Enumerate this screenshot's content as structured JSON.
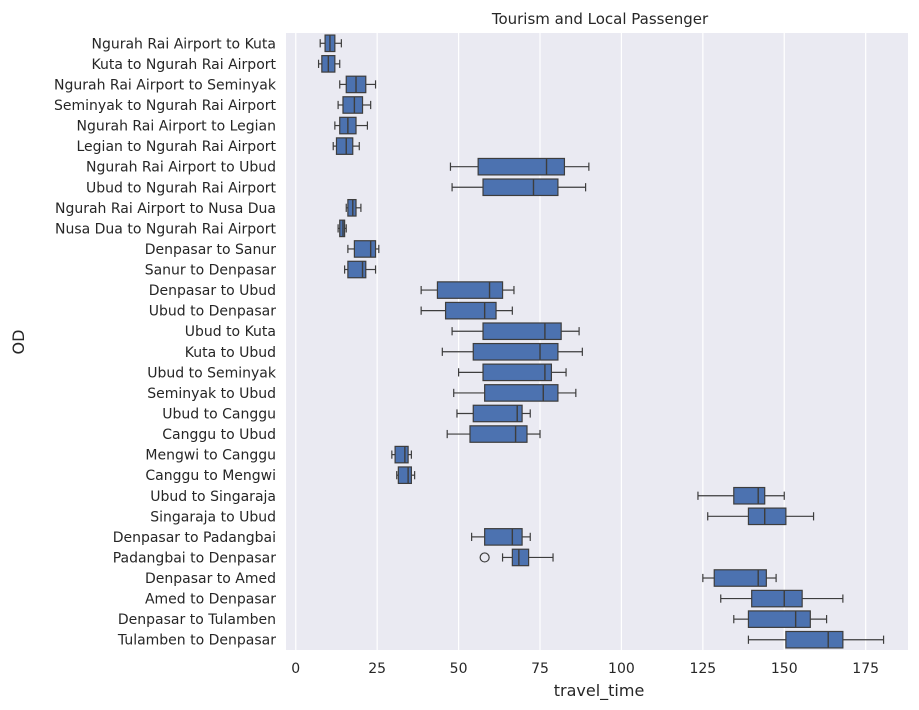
{
  "chart_data": {
    "type": "boxplot",
    "orientation": "horizontal",
    "title": "Tourism and Local Passenger",
    "xlabel": "travel_time",
    "ylabel": "OD",
    "xlim": [
      -3,
      188
    ],
    "xticks": [
      0,
      25,
      50,
      75,
      100,
      125,
      150,
      175
    ],
    "grid": true,
    "colors": {
      "box_fill": "#4c72b0",
      "line": "#3d3d3d",
      "background": "#eaeaf2",
      "grid": "#ffffff"
    },
    "categories": [
      "Ngurah Rai Airport to Kuta",
      "Kuta to Ngurah Rai Airport",
      "Ngurah Rai Airport to Seminyak",
      "Seminyak to Ngurah Rai Airport",
      "Ngurah Rai Airport to Legian",
      "Legian to Ngurah Rai Airport",
      "Ngurah Rai Airport to Ubud",
      "Ubud to Ngurah Rai Airport",
      "Ngurah Rai Airport to Nusa Dua",
      "Nusa Dua to Ngurah Rai Airport",
      "Denpasar to Sanur",
      "Sanur to Denpasar",
      "Denpasar to Ubud",
      "Ubud to Denpasar",
      "Ubud to Kuta",
      "Kuta to Ubud",
      "Ubud to Seminyak",
      "Seminyak to Ubud",
      "Ubud to Canggu",
      "Canggu to Ubud",
      "Mengwi to Canggu",
      "Canggu to Mengwi",
      "Ubud to Singaraja",
      "Singaraja to Ubud",
      "Denpasar to Padangbai",
      "Padangbai to Denpasar",
      "Denpasar to Amed",
      "Amed to Denpasar",
      "Denpasar to Tulamben",
      "Tulamben to Denpasar"
    ],
    "boxes": [
      {
        "whislo": 7.5,
        "q1": 9,
        "med": 10.5,
        "q3": 12,
        "whishi": 14,
        "fliers": []
      },
      {
        "whislo": 7,
        "q1": 8,
        "med": 10,
        "q3": 12,
        "whishi": 13.5,
        "fliers": []
      },
      {
        "whislo": 13.5,
        "q1": 15.5,
        "med": 18.5,
        "q3": 21.5,
        "whishi": 24.5,
        "fliers": []
      },
      {
        "whislo": 13,
        "q1": 14.5,
        "med": 18,
        "q3": 20.5,
        "whishi": 23,
        "fliers": []
      },
      {
        "whislo": 12,
        "q1": 13.5,
        "med": 16,
        "q3": 18.5,
        "whishi": 22,
        "fliers": []
      },
      {
        "whislo": 11.5,
        "q1": 12.5,
        "med": 15.5,
        "q3": 17.5,
        "whishi": 19.5,
        "fliers": []
      },
      {
        "whislo": 47.5,
        "q1": 56,
        "med": 77,
        "q3": 82.5,
        "whishi": 90,
        "fliers": []
      },
      {
        "whislo": 48,
        "q1": 57.5,
        "med": 73,
        "q3": 80.5,
        "whishi": 89,
        "fliers": []
      },
      {
        "whislo": 15.5,
        "q1": 16,
        "med": 17.5,
        "q3": 18.5,
        "whishi": 20,
        "fliers": []
      },
      {
        "whislo": 13,
        "q1": 13.5,
        "med": 14.5,
        "q3": 15,
        "whishi": 15.5,
        "fliers": []
      },
      {
        "whislo": 16,
        "q1": 18,
        "med": 23,
        "q3": 24.5,
        "whishi": 25.5,
        "fliers": []
      },
      {
        "whislo": 15,
        "q1": 16,
        "med": 20.5,
        "q3": 21.5,
        "whishi": 24.5,
        "fliers": []
      },
      {
        "whislo": 38.5,
        "q1": 43.5,
        "med": 59.5,
        "q3": 63.5,
        "whishi": 67,
        "fliers": []
      },
      {
        "whislo": 38.5,
        "q1": 46,
        "med": 58,
        "q3": 61.5,
        "whishi": 66.5,
        "fliers": []
      },
      {
        "whislo": 48,
        "q1": 57.5,
        "med": 76.5,
        "q3": 81.5,
        "whishi": 87,
        "fliers": []
      },
      {
        "whislo": 45,
        "q1": 54.5,
        "med": 75,
        "q3": 80.5,
        "whishi": 88,
        "fliers": []
      },
      {
        "whislo": 50,
        "q1": 57.5,
        "med": 76.5,
        "q3": 78.5,
        "whishi": 83,
        "fliers": []
      },
      {
        "whislo": 48.5,
        "q1": 58,
        "med": 76,
        "q3": 80.5,
        "whishi": 86,
        "fliers": []
      },
      {
        "whislo": 49.5,
        "q1": 54.5,
        "med": 68,
        "q3": 69.5,
        "whishi": 72,
        "fliers": []
      },
      {
        "whislo": 46.5,
        "q1": 53.5,
        "med": 67.5,
        "q3": 71,
        "whishi": 75,
        "fliers": []
      },
      {
        "whislo": 29.5,
        "q1": 30.5,
        "med": 33.5,
        "q3": 34.5,
        "whishi": 35.5,
        "fliers": []
      },
      {
        "whislo": 31,
        "q1": 31.5,
        "med": 34.5,
        "q3": 35.5,
        "whishi": 36.5,
        "fliers": []
      },
      {
        "whislo": 123.5,
        "q1": 134.5,
        "med": 142,
        "q3": 144,
        "whishi": 150,
        "fliers": []
      },
      {
        "whislo": 126.5,
        "q1": 139,
        "med": 144,
        "q3": 150.5,
        "whishi": 159,
        "fliers": []
      },
      {
        "whislo": 54,
        "q1": 58,
        "med": 66.5,
        "q3": 69.5,
        "whishi": 72,
        "fliers": []
      },
      {
        "whislo": 63.5,
        "q1": 66.5,
        "med": 68.5,
        "q3": 71.5,
        "whishi": 79,
        "fliers": [
          58
        ]
      },
      {
        "whislo": 125,
        "q1": 128.5,
        "med": 142,
        "q3": 144.5,
        "whishi": 147.5,
        "fliers": []
      },
      {
        "whislo": 130.5,
        "q1": 140,
        "med": 150,
        "q3": 155.5,
        "whishi": 168,
        "fliers": []
      },
      {
        "whislo": 134.5,
        "q1": 139,
        "med": 153.5,
        "q3": 158,
        "whishi": 163,
        "fliers": []
      },
      {
        "whislo": 139,
        "q1": 150.5,
        "med": 163.5,
        "q3": 168,
        "whishi": 180.5,
        "fliers": []
      }
    ]
  }
}
